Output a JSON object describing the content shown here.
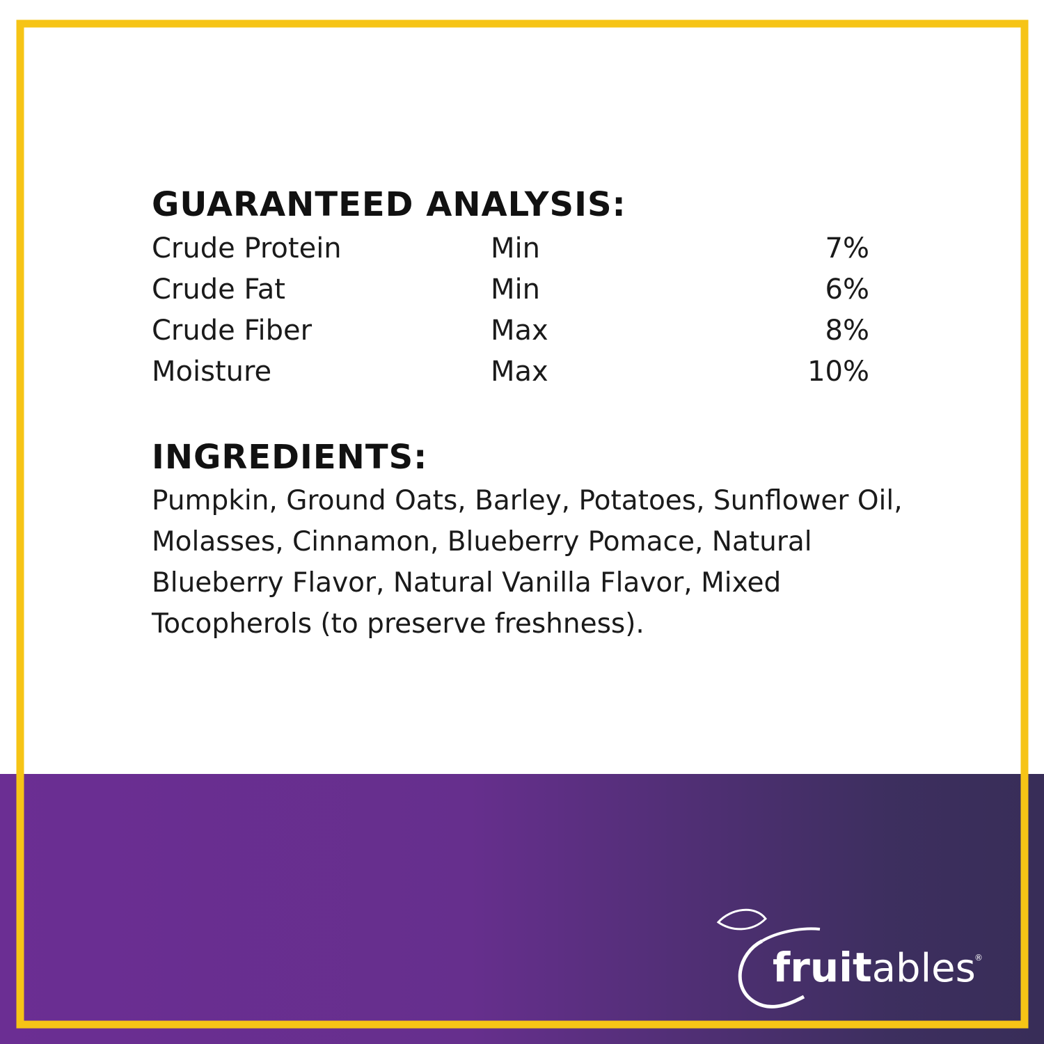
{
  "analysis": {
    "title": "GUARANTEED ANALYSIS:",
    "rows": [
      [
        "Crude Protein",
        "Min",
        "7%"
      ],
      [
        "Crude Fat",
        "Min",
        "6%"
      ],
      [
        "Crude Fiber",
        "Max",
        "8%"
      ],
      [
        "Moisture",
        "Max",
        "10%"
      ]
    ]
  },
  "ingredients": {
    "title": "INGREDIENTS:",
    "lines": [
      "Pumpkin, Ground Oats, Barley, Potatoes, Sunflower Oil,",
      "Molasses, Cinnamon, Blueberry Pomace, Natural",
      "Blueberry Flavor, Natural Vanilla Flavor, Mixed",
      "Tocopherols (to preserve freshness)."
    ]
  },
  "logo": {
    "bold": "fruit",
    "light": "ables",
    "mark": "®"
  }
}
